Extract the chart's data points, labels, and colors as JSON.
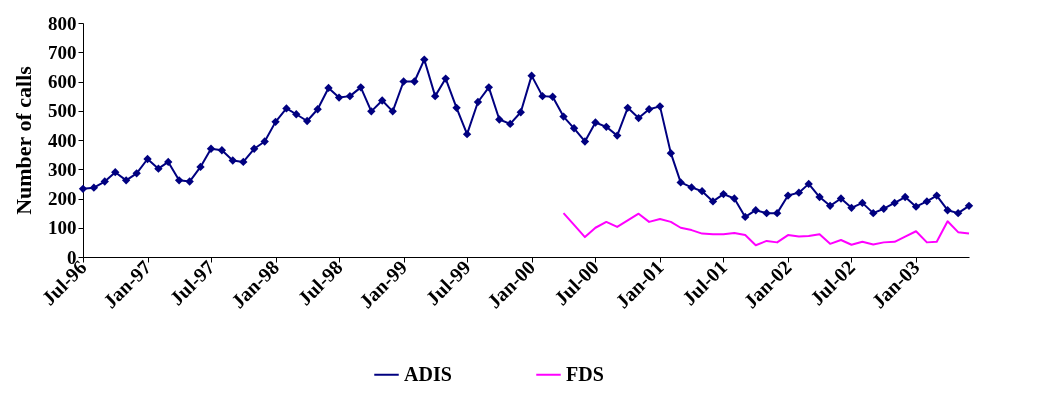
{
  "chart_data": {
    "type": "line",
    "ylabel": "Number of calls",
    "x": [
      "1996-07",
      "1996-08",
      "1996-09",
      "1996-10",
      "1996-11",
      "1996-12",
      "1997-01",
      "1997-02",
      "1997-03",
      "1997-04",
      "1997-05",
      "1997-06",
      "1997-07",
      "1997-08",
      "1997-09",
      "1997-10",
      "1997-11",
      "1997-12",
      "1998-01",
      "1998-02",
      "1998-03",
      "1998-04",
      "1998-05",
      "1998-06",
      "1998-07",
      "1998-08",
      "1998-09",
      "1998-10",
      "1998-11",
      "1998-12",
      "1999-01",
      "1999-02",
      "1999-03",
      "1999-04",
      "1999-05",
      "1999-06",
      "1999-07",
      "1999-08",
      "1999-09",
      "1999-10",
      "1999-11",
      "1999-12",
      "2000-01",
      "2000-02",
      "2000-03",
      "2000-04",
      "2000-05",
      "2000-06",
      "2000-07",
      "2000-08",
      "2000-09",
      "2000-10",
      "2000-11",
      "2000-12",
      "2001-01",
      "2001-02",
      "2001-03",
      "2001-04",
      "2001-05",
      "2001-06",
      "2001-07",
      "2001-08",
      "2001-09",
      "2001-10",
      "2001-11",
      "2001-12",
      "2002-01",
      "2002-02",
      "2002-03",
      "2002-04",
      "2002-05",
      "2002-06",
      "2002-07",
      "2002-08",
      "2002-09",
      "2002-10",
      "2002-11",
      "2002-12",
      "2003-01",
      "2003-02",
      "2003-03",
      "2003-04",
      "2003-05",
      "2003-06"
    ],
    "series": [
      {
        "name": "ADIS",
        "color": "#000080",
        "marker": "diamond",
        "values": [
          233,
          237,
          258,
          290,
          262,
          286,
          335,
          302,
          325,
          262,
          258,
          308,
          370,
          365,
          330,
          325,
          370,
          395,
          462,
          508,
          488,
          465,
          505,
          578,
          545,
          550,
          580,
          498,
          535,
          498,
          600,
          600,
          675,
          550,
          610,
          510,
          420,
          530,
          580,
          470,
          455,
          495,
          620,
          550,
          548,
          480,
          440,
          395,
          460,
          445,
          415,
          510,
          475,
          505,
          515,
          355,
          255,
          238,
          225,
          190,
          215,
          200,
          137,
          160,
          150,
          150,
          210,
          220,
          250,
          205,
          175,
          200,
          168,
          185,
          150,
          165,
          185,
          205,
          172,
          190,
          210,
          160,
          150,
          175
        ]
      },
      {
        "name": "FDS",
        "color": "#ff00ff",
        "marker": "none",
        "x": [
          "2000-04",
          "2000-05",
          "2000-06",
          "2000-07",
          "2000-08",
          "2000-09",
          "2000-10",
          "2000-11",
          "2000-12",
          "2001-01",
          "2001-02",
          "2001-03",
          "2001-04",
          "2001-05",
          "2001-06",
          "2001-07",
          "2001-08",
          "2001-09",
          "2001-10",
          "2001-11",
          "2001-12",
          "2002-01",
          "2002-02",
          "2002-03",
          "2002-04",
          "2002-05",
          "2002-06",
          "2002-07",
          "2002-08",
          "2002-09",
          "2002-10",
          "2002-11",
          "2002-12",
          "2003-01",
          "2003-02",
          "2003-03",
          "2003-04",
          "2003-05",
          "2003-06"
        ],
        "values": [
          150,
          110,
          68,
          100,
          120,
          103,
          125,
          148,
          120,
          130,
          120,
          100,
          92,
          80,
          78,
          78,
          82,
          75,
          40,
          55,
          50,
          75,
          70,
          72,
          78,
          45,
          58,
          42,
          52,
          43,
          50,
          52,
          70,
          88,
          50,
          52,
          122,
          85,
          80
        ]
      }
    ],
    "xlim": [
      "1996-07",
      "2003-06"
    ],
    "xticks": [
      {
        "value": "1996-07",
        "label": "Jul-96"
      },
      {
        "value": "1997-01",
        "label": "Jan-97"
      },
      {
        "value": "1997-07",
        "label": "Jul-97"
      },
      {
        "value": "1998-01",
        "label": "Jan-98"
      },
      {
        "value": "1998-07",
        "label": "Jul-98"
      },
      {
        "value": "1999-01",
        "label": "Jan-99"
      },
      {
        "value": "1999-07",
        "label": "Jul-99"
      },
      {
        "value": "2000-01",
        "label": "Jan-00"
      },
      {
        "value": "2000-07",
        "label": "Jul-00"
      },
      {
        "value": "2001-01",
        "label": "Jan-01"
      },
      {
        "value": "2001-07",
        "label": "Jul-01"
      },
      {
        "value": "2002-01",
        "label": "Jan-02"
      },
      {
        "value": "2002-07",
        "label": "Jul-02"
      },
      {
        "value": "2003-01",
        "label": "Jan-03"
      }
    ],
    "ylim": [
      0,
      800
    ],
    "yticks": [
      0,
      100,
      200,
      300,
      400,
      500,
      600,
      700,
      800
    ],
    "grid": false,
    "legend": "bottom",
    "line_style": "solid"
  }
}
